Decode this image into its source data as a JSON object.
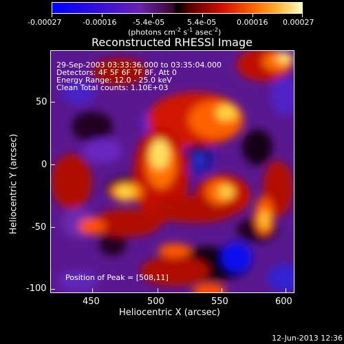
{
  "colorbar": {
    "labels": [
      "-0.00027",
      "-0.00016",
      "-5.4e-05",
      "5.4e-05",
      "0.00016",
      "0.00027"
    ],
    "unit_label": "(photons cm",
    "unit_sup1": "-2",
    "unit_mid": " s",
    "unit_sup2": "-1",
    "unit_mid2": " asec",
    "unit_sup3": "-2",
    "unit_end": ")"
  },
  "plot": {
    "title": "Reconstructed RHESSI Image",
    "xlabel": "Heliocentric X (arcsec)",
    "ylabel": "Heliocentric Y (arcsec)",
    "xticks": [
      "450",
      "500",
      "550",
      "600"
    ],
    "yticks": [
      "50",
      "0",
      "-50",
      "-100"
    ],
    "info_lines": [
      "29-Sep-2003 03:33:36.000 to 03:35:04.000",
      "Detectors: 4F 5F 6F 7F 8F, Att 0",
      "Energy Range: 12.0 - 25.0 keV",
      "Clean    Total counts: 1.10E+03"
    ],
    "peak_text": "Position of Peak = [508,11]"
  },
  "footer": {
    "date": "12-Jun-2013 12:36"
  },
  "colors": {
    "background": "#000000",
    "foreground": "#ffffff"
  }
}
